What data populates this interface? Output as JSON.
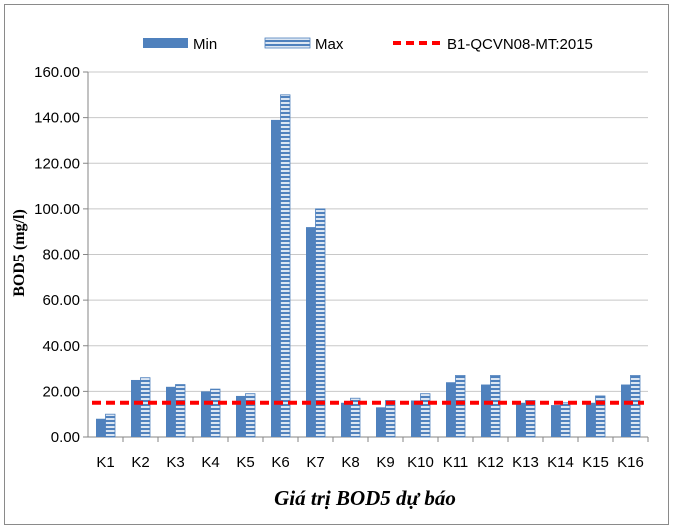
{
  "chart_data": {
    "type": "bar",
    "xlabel": "Giá trị BOD5 dự báo",
    "ylabel": "BOD5 (mg/l)",
    "ylim": [
      0,
      160
    ],
    "yticks": [
      "0.00",
      "20.00",
      "40.00",
      "60.00",
      "80.00",
      "100.00",
      "120.00",
      "140.00",
      "160.00"
    ],
    "grid": true,
    "legend_position": "top",
    "categories": [
      "K1",
      "K2",
      "K3",
      "K4",
      "K5",
      "K6",
      "K7",
      "K8",
      "K9",
      "K10",
      "K11",
      "K12",
      "K13",
      "K14",
      "K15",
      "K16"
    ],
    "series": [
      {
        "name": "Min",
        "color": "#4f81bd",
        "values": [
          8,
          25,
          22,
          20,
          18,
          139,
          92,
          15,
          13,
          16,
          24,
          23,
          15,
          14,
          15,
          23
        ]
      },
      {
        "name": "Max",
        "color": "#4f81bd",
        "pattern": "horizontal-stripes",
        "values": [
          10,
          26,
          23,
          21,
          19,
          150,
          100,
          17,
          16,
          19,
          27,
          27,
          16,
          15,
          18,
          27
        ]
      }
    ],
    "reference_line": {
      "name": "B1-QCVN08-MT:2015",
      "value": 15,
      "color": "#ff0000",
      "style": "dashed"
    }
  }
}
